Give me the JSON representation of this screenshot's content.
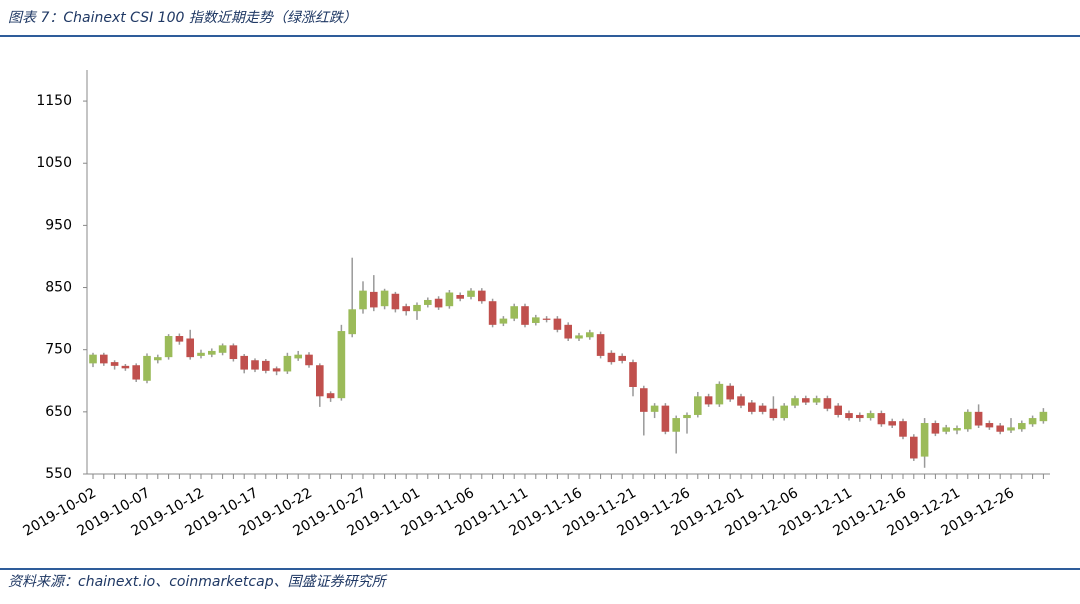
{
  "chart_data": {
    "type": "candlestick",
    "title": "图表 7：Chainext CSI 100 指数近期走势（绿涨红跌）",
    "source": "资料来源：chainext.io、coinmarketcap、国盛证券研究所",
    "categories": [
      "2019-10-02",
      null,
      null,
      null,
      null,
      "2019-10-07",
      null,
      null,
      null,
      null,
      "2019-10-12",
      null,
      null,
      null,
      null,
      "2019-10-17",
      null,
      null,
      null,
      null,
      "2019-10-22",
      null,
      null,
      null,
      null,
      "2019-10-27",
      null,
      null,
      null,
      null,
      "2019-11-01",
      null,
      null,
      null,
      null,
      "2019-11-06",
      null,
      null,
      null,
      null,
      "2019-11-11",
      null,
      null,
      null,
      null,
      "2019-11-16",
      null,
      null,
      null,
      null,
      "2019-11-21",
      null,
      null,
      null,
      null,
      "2019-11-26",
      null,
      null,
      null,
      null,
      "2019-12-01",
      null,
      null,
      null,
      null,
      "2019-12-06",
      null,
      null,
      null,
      null,
      "2019-12-11",
      null,
      null,
      null,
      null,
      "2019-12-16",
      null,
      null,
      null,
      null,
      "2019-12-21",
      null,
      null,
      null,
      null,
      "2019-12-26",
      null,
      null,
      null
    ],
    "open": [
      728,
      742,
      730,
      724,
      725,
      700,
      733,
      738,
      772,
      768,
      740,
      742,
      745,
      757,
      740,
      733,
      732,
      720,
      715,
      736,
      742,
      725,
      680,
      672,
      775,
      815,
      843,
      820,
      840,
      820,
      812,
      822,
      832,
      820,
      838,
      835,
      845,
      828,
      792,
      800,
      820,
      793,
      800,
      800,
      790,
      768,
      770,
      775,
      745,
      740,
      730,
      688,
      650,
      660,
      618,
      640,
      645,
      675,
      662,
      692,
      675,
      665,
      660,
      655,
      640,
      660,
      672,
      665,
      672,
      660,
      648,
      645,
      640,
      648,
      635,
      635,
      610,
      578,
      632,
      618,
      620,
      622,
      650,
      632,
      628,
      620,
      622,
      630,
      635
    ],
    "high": [
      745,
      745,
      733,
      727,
      728,
      744,
      742,
      775,
      776,
      782,
      750,
      752,
      760,
      760,
      743,
      736,
      735,
      723,
      745,
      748,
      746,
      728,
      683,
      790,
      898,
      860,
      870,
      848,
      843,
      824,
      826,
      834,
      836,
      846,
      842,
      849,
      849,
      832,
      804,
      824,
      824,
      806,
      804,
      804,
      794,
      777,
      782,
      779,
      749,
      744,
      734,
      692,
      664,
      664,
      644,
      649,
      682,
      679,
      699,
      696,
      679,
      669,
      664,
      675,
      664,
      676,
      676,
      676,
      676,
      664,
      652,
      649,
      652,
      652,
      639,
      639,
      614,
      640,
      636,
      629,
      628,
      654,
      662,
      636,
      632,
      640,
      636,
      644,
      656
    ],
    "low": [
      722,
      724,
      718,
      716,
      698,
      696,
      728,
      734,
      758,
      734,
      736,
      738,
      741,
      731,
      712,
      714,
      712,
      709,
      711,
      732,
      721,
      658,
      666,
      668,
      770,
      808,
      812,
      815,
      810,
      805,
      798,
      818,
      814,
      816,
      828,
      831,
      824,
      786,
      788,
      796,
      786,
      789,
      794,
      778,
      764,
      764,
      766,
      736,
      726,
      728,
      675,
      612,
      640,
      614,
      583,
      615,
      641,
      658,
      658,
      666,
      656,
      646,
      646,
      636,
      636,
      656,
      661,
      661,
      651,
      641,
      636,
      634,
      636,
      626,
      624,
      606,
      571,
      560,
      611,
      614,
      614,
      618,
      624,
      621,
      614,
      616,
      618,
      626,
      631
    ],
    "close": [
      742,
      728,
      724,
      720,
      702,
      740,
      738,
      772,
      763,
      738,
      745,
      748,
      757,
      735,
      718,
      718,
      716,
      715,
      740,
      742,
      725,
      675,
      672,
      780,
      815,
      845,
      818,
      845,
      815,
      812,
      822,
      830,
      818,
      842,
      832,
      845,
      828,
      790,
      800,
      820,
      790,
      802,
      798,
      782,
      768,
      773,
      778,
      740,
      730,
      732,
      690,
      650,
      660,
      618,
      640,
      645,
      675,
      662,
      695,
      670,
      660,
      650,
      650,
      640,
      660,
      672,
      665,
      672,
      655,
      645,
      640,
      640,
      648,
      630,
      628,
      610,
      575,
      632,
      615,
      625,
      624,
      650,
      628,
      625,
      618,
      625,
      632,
      640,
      650
    ],
    "up_color": "#9bbb59",
    "down_color": "#c0504d",
    "ylim": [
      550,
      1200
    ],
    "yticks": [
      550,
      650,
      750,
      850,
      950,
      1050,
      1150
    ]
  }
}
